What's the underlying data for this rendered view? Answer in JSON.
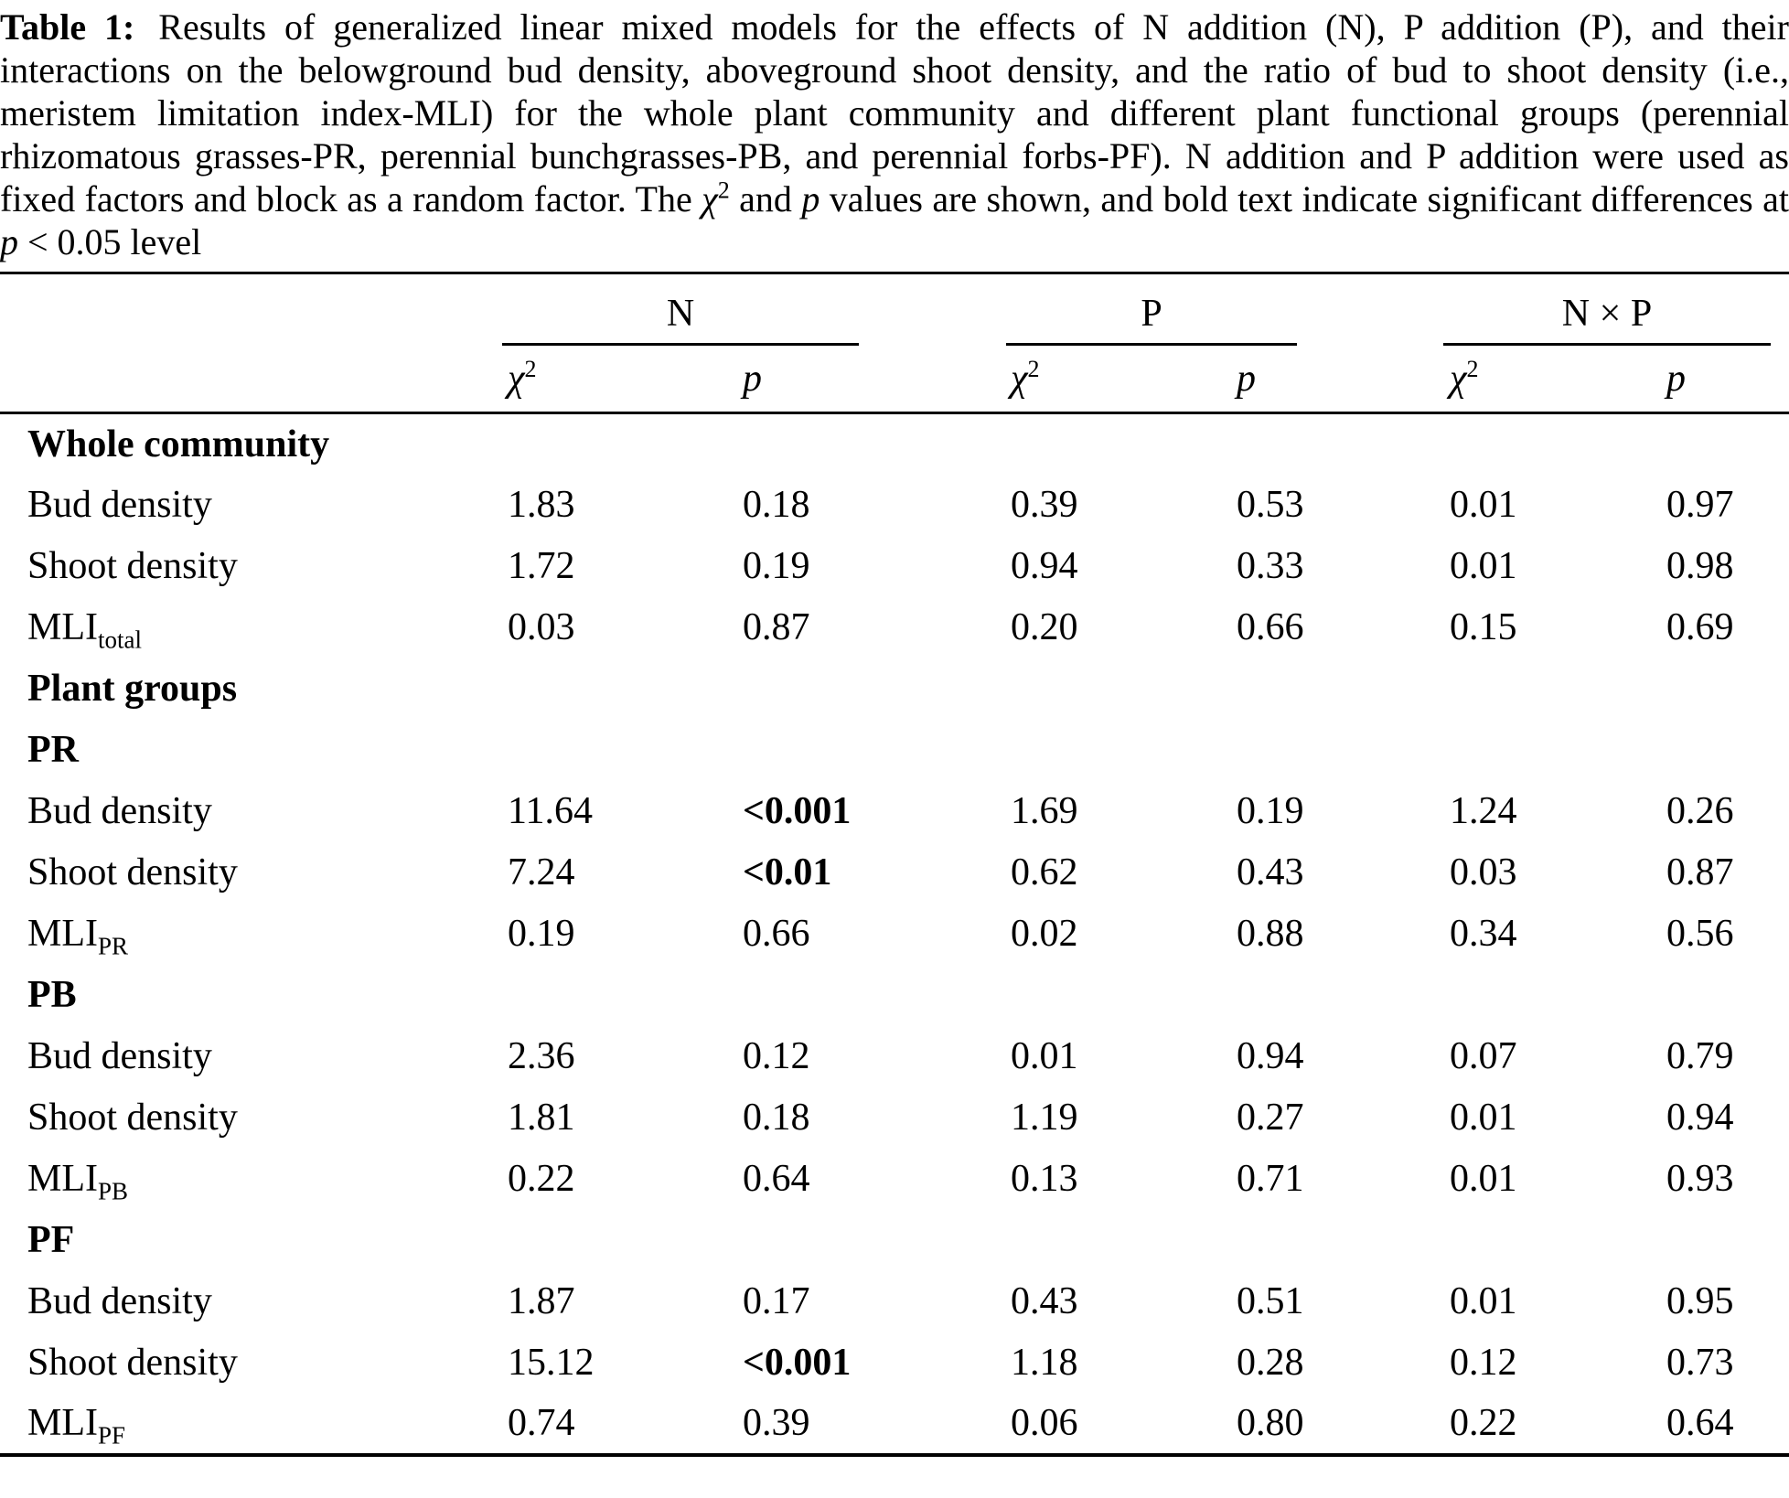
{
  "caption": {
    "segments": [
      {
        "style": "bold",
        "text": "Table 1:"
      },
      {
        "style": "normal",
        "text": " Results of generalized linear mixed models for the effects of N addition (N), P addition (P), and their interactions on the belowground bud density, aboveground shoot density, and the ratio of bud to shoot density (i.e., meristem limitation index-MLI) for the whole plant community and different plant functional groups (perennial rhizomatous grasses-PR, perennial bunchgrasses-PB, and perennial forbs-PF). N addition and P addition were used as fixed factors and block as a random factor. The "
      },
      {
        "style": "it",
        "text": "χ"
      },
      {
        "style": "sup",
        "text": "2"
      },
      {
        "style": "normal",
        "text": " and "
      },
      {
        "style": "it",
        "text": "p"
      },
      {
        "style": "normal",
        "text": " values are shown, and bold text indicate significant differences at "
      },
      {
        "style": "it",
        "text": "p"
      },
      {
        "style": "normal",
        "text": " < 0.05 level"
      }
    ]
  },
  "table": {
    "groups": [
      {
        "label": "N"
      },
      {
        "label": "P"
      },
      {
        "label": "N × P"
      }
    ],
    "subheader": {
      "chi_symbol": "χ",
      "chi_sup": "2",
      "p_label": "p"
    },
    "rows": [
      {
        "type": "section",
        "label": "Whole community"
      },
      {
        "type": "data",
        "label": "Bud density",
        "cells": [
          {
            "t": "1.83"
          },
          {
            "t": "0.18"
          },
          {
            "t": "0.39"
          },
          {
            "t": "0.53"
          },
          {
            "t": "0.01"
          },
          {
            "t": "0.97"
          }
        ]
      },
      {
        "type": "data",
        "label": "Shoot density",
        "cells": [
          {
            "t": "1.72"
          },
          {
            "t": "0.19"
          },
          {
            "t": "0.94"
          },
          {
            "t": "0.33"
          },
          {
            "t": "0.01"
          },
          {
            "t": "0.98"
          }
        ]
      },
      {
        "type": "data",
        "label": "MLI",
        "sub": "total",
        "cells": [
          {
            "t": "0.03"
          },
          {
            "t": "0.87"
          },
          {
            "t": "0.20"
          },
          {
            "t": "0.66"
          },
          {
            "t": "0.15"
          },
          {
            "t": "0.69"
          }
        ]
      },
      {
        "type": "section",
        "label": "Plant groups"
      },
      {
        "type": "section",
        "label": "PR"
      },
      {
        "type": "data",
        "label": "Bud density",
        "cells": [
          {
            "t": "11.64"
          },
          {
            "t": "<0.001",
            "b": true
          },
          {
            "t": "1.69"
          },
          {
            "t": "0.19"
          },
          {
            "t": "1.24"
          },
          {
            "t": "0.26"
          }
        ]
      },
      {
        "type": "data",
        "label": "Shoot density",
        "cells": [
          {
            "t": "7.24"
          },
          {
            "t": "<0.01",
            "b": true
          },
          {
            "t": "0.62"
          },
          {
            "t": "0.43"
          },
          {
            "t": "0.03"
          },
          {
            "t": "0.87"
          }
        ]
      },
      {
        "type": "data",
        "label": "MLI",
        "sub": "PR",
        "cells": [
          {
            "t": "0.19"
          },
          {
            "t": "0.66"
          },
          {
            "t": "0.02"
          },
          {
            "t": "0.88"
          },
          {
            "t": "0.34"
          },
          {
            "t": "0.56"
          }
        ]
      },
      {
        "type": "section",
        "label": "PB"
      },
      {
        "type": "data",
        "label": "Bud density",
        "cells": [
          {
            "t": "2.36"
          },
          {
            "t": "0.12"
          },
          {
            "t": "0.01"
          },
          {
            "t": "0.94"
          },
          {
            "t": "0.07"
          },
          {
            "t": "0.79"
          }
        ]
      },
      {
        "type": "data",
        "label": "Shoot density",
        "cells": [
          {
            "t": "1.81"
          },
          {
            "t": "0.18"
          },
          {
            "t": "1.19"
          },
          {
            "t": "0.27"
          },
          {
            "t": "0.01"
          },
          {
            "t": "0.94"
          }
        ]
      },
      {
        "type": "data",
        "label": "MLI",
        "sub": "PB",
        "cells": [
          {
            "t": "0.22"
          },
          {
            "t": "0.64"
          },
          {
            "t": "0.13"
          },
          {
            "t": "0.71"
          },
          {
            "t": "0.01"
          },
          {
            "t": "0.93"
          }
        ]
      },
      {
        "type": "section",
        "label": "PF"
      },
      {
        "type": "data",
        "label": "Bud density",
        "cells": [
          {
            "t": "1.87"
          },
          {
            "t": "0.17"
          },
          {
            "t": "0.43"
          },
          {
            "t": "0.51"
          },
          {
            "t": "0.01"
          },
          {
            "t": "0.95"
          }
        ]
      },
      {
        "type": "data",
        "label": "Shoot density",
        "cells": [
          {
            "t": "15.12"
          },
          {
            "t": "<0.001",
            "b": true
          },
          {
            "t": "1.18"
          },
          {
            "t": "0.28"
          },
          {
            "t": "0.12"
          },
          {
            "t": "0.73"
          }
        ]
      },
      {
        "type": "data",
        "label": "MLI",
        "sub": "PF",
        "cells": [
          {
            "t": "0.74"
          },
          {
            "t": "0.39"
          },
          {
            "t": "0.06"
          },
          {
            "t": "0.80"
          },
          {
            "t": "0.22"
          },
          {
            "t": "0.64"
          }
        ]
      }
    ]
  }
}
